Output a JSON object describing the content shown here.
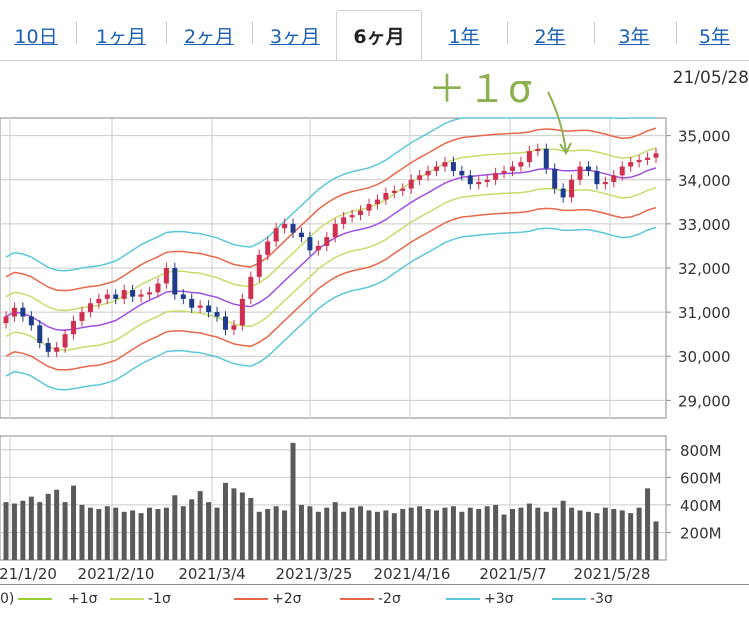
{
  "tabs": [
    {
      "label": "10日",
      "active": false
    },
    {
      "label": "1ヶ月",
      "active": false
    },
    {
      "label": "2ヶ月",
      "active": false
    },
    {
      "label": "3ヶ月",
      "active": false
    },
    {
      "label": "6ヶ月",
      "active": true
    },
    {
      "label": "1年",
      "active": false
    },
    {
      "label": "2年",
      "active": false
    },
    {
      "label": "3年",
      "active": false
    },
    {
      "label": "5年",
      "active": false
    }
  ],
  "chart": {
    "last_date": "21/05/28",
    "annotation": "＋１σ",
    "y_ticks": [
      "35,000",
      "34,000",
      "33,000",
      "32,000",
      "31,000",
      "30,000",
      "29,000"
    ],
    "vol_ticks": [
      "800M",
      "600M",
      "400M",
      "200M"
    ],
    "x_ticks": [
      "21/1/20",
      "2021/2/10",
      "2021/3/4",
      "2021/3/25",
      "2021/4/16",
      "2021/5/7",
      "2021/5/28"
    ]
  },
  "legend": [
    {
      "label": "0)",
      "color": "#9acd32"
    },
    {
      "label": "+1σ",
      "color": "#c8dc6a"
    },
    {
      "label": "-1σ",
      "color": "#c8dc6a"
    },
    {
      "label": "+2σ",
      "color": "#e8674a"
    },
    {
      "label": "-2σ",
      "color": "#e8674a"
    },
    {
      "label": "+3σ",
      "color": "#5bc8d8"
    },
    {
      "label": "-3σ",
      "color": "#5bc8d8"
    }
  ],
  "chart_data": {
    "type": "candlestick",
    "y_unit": "price",
    "ylim": [
      28600,
      35400
    ],
    "volume_ylim": [
      0,
      900
    ],
    "volume_unit": "M",
    "x_labels": [
      "21/1/20",
      "2021/2/10",
      "2021/3/4",
      "2021/3/25",
      "2021/4/16",
      "2021/5/7",
      "2021/5/28"
    ],
    "close": [
      30900,
      31100,
      30900,
      30700,
      30300,
      30100,
      30200,
      30500,
      30800,
      31000,
      31200,
      31300,
      31400,
      31300,
      31500,
      31350,
      31400,
      31450,
      31650,
      32000,
      31400,
      31300,
      31100,
      31150,
      31000,
      30900,
      30600,
      30700,
      31300,
      31800,
      32300,
      32600,
      32900,
      33000,
      32800,
      32700,
      32400,
      32500,
      32700,
      33000,
      33150,
      33200,
      33300,
      33450,
      33550,
      33700,
      33750,
      33800,
      34000,
      34100,
      34200,
      34300,
      34400,
      34200,
      34100,
      33900,
      33950,
      34000,
      34150,
      34200,
      34300,
      34400,
      34650,
      34700,
      34250,
      33800,
      33600,
      34000,
      34300,
      34200,
      33900,
      33950,
      34100,
      34300,
      34400,
      34450,
      34500,
      34600
    ],
    "volume": [
      420,
      410,
      430,
      460,
      420,
      480,
      510,
      420,
      540,
      400,
      380,
      370,
      390,
      380,
      350,
      360,
      340,
      380,
      370,
      380,
      470,
      390,
      440,
      500,
      420,
      380,
      560,
      520,
      490,
      450,
      350,
      370,
      390,
      360,
      850,
      400,
      390,
      350,
      380,
      420,
      350,
      380,
      390,
      360,
      350,
      360,
      340,
      370,
      380,
      390,
      370,
      360,
      380,
      390,
      350,
      380,
      370,
      390,
      400,
      330,
      370,
      380,
      410,
      380,
      350,
      380,
      430,
      380,
      360,
      350,
      340,
      380,
      370,
      360,
      340,
      380,
      520,
      280
    ],
    "bands": {
      "mid": true,
      "plus1": true,
      "minus1": true,
      "plus2": true,
      "minus2": true,
      "plus3": true,
      "minus3": true
    }
  }
}
